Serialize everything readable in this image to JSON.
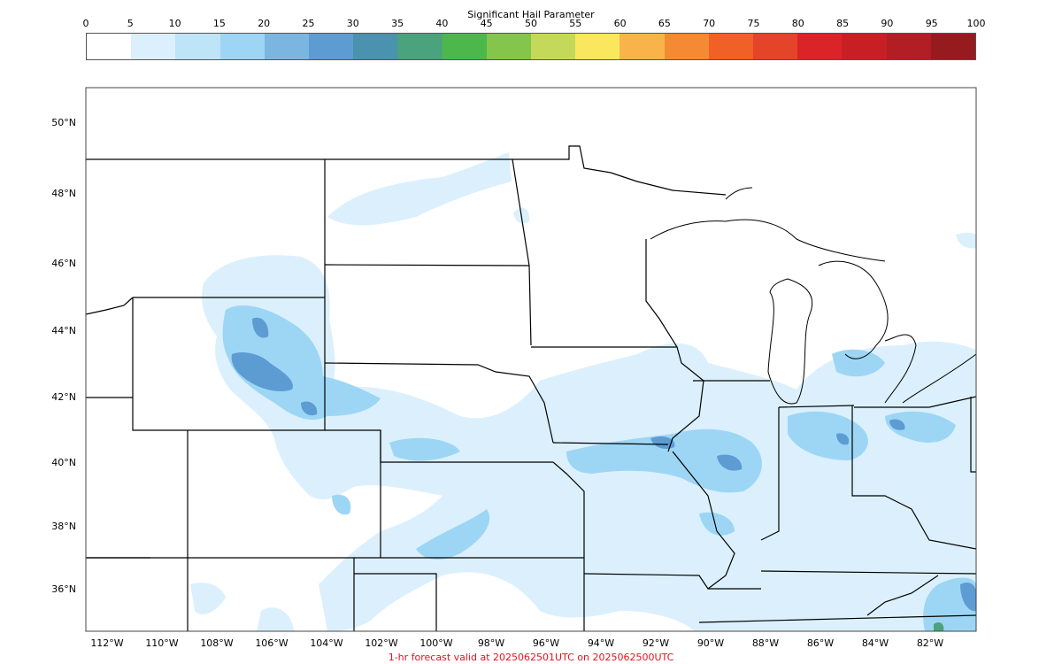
{
  "colorbar": {
    "title": "Significant Hail Parameter",
    "ticks": [
      "0",
      "5",
      "10",
      "15",
      "20",
      "25",
      "30",
      "35",
      "40",
      "45",
      "50",
      "55",
      "60",
      "65",
      "70",
      "75",
      "80",
      "85",
      "90",
      "95",
      "100"
    ],
    "colors": [
      "#ffffff",
      "#dbf0fc",
      "#bde4f7",
      "#9dd6f5",
      "#7ab6e0",
      "#5d9cd3",
      "#4a92ae",
      "#4aa37c",
      "#4cb84c",
      "#84c64c",
      "#c4d95a",
      "#fbe75e",
      "#f8b44b",
      "#f58a34",
      "#f16027",
      "#e44428",
      "#da2427",
      "#c81f25",
      "#b11e23",
      "#951b1e"
    ]
  },
  "map": {
    "lat_labels": [
      "50°N",
      "48°N",
      "46°N",
      "44°N",
      "42°N",
      "40°N",
      "38°N",
      "36°N"
    ],
    "lon_labels": [
      "112°W",
      "110°W",
      "108°W",
      "106°W",
      "104°W",
      "102°W",
      "100°W",
      "98°W",
      "96°W",
      "94°W",
      "92°W",
      "90°W",
      "88°W",
      "86°W",
      "84°W",
      "82°W"
    ]
  },
  "footer": {
    "text": "1-hr forecast valid at 2025062501UTC on 2025062500UTC",
    "color": "#e8101e"
  }
}
